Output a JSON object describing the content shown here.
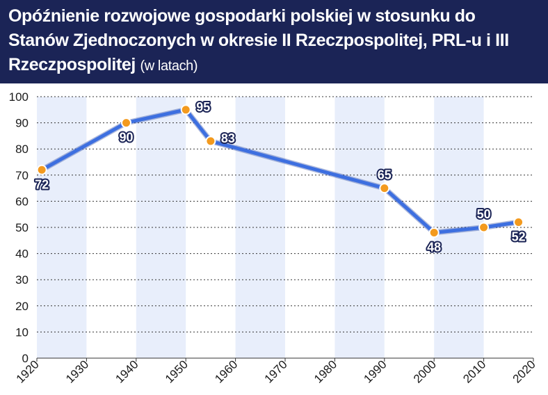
{
  "header": {
    "title": "Opóźnienie rozwojowe gospodarki polskiej w stosunku do Stanów Zjednoczonych w okresie II Rzeczpospolitej, PRL-u i III Rzeczpospolitej",
    "subtitle": "(w latach)"
  },
  "colors": {
    "header_bg": "#1b2456",
    "line": "#3d6fe0",
    "marker": "#f39a1e",
    "band": "#e8eefb",
    "label_outline": "#1b2456"
  },
  "chart_data": {
    "type": "line",
    "title": "Opóźnienie rozwojowe gospodarki polskiej w stosunku do Stanów Zjednoczonych w okresie II Rzeczpospolitej, PRL-u i III Rzeczpospolitej",
    "subtitle": "(w latach)",
    "xlabel": "",
    "ylabel": "",
    "xlim": [
      1920,
      2020
    ],
    "ylim": [
      0,
      100
    ],
    "x_ticks": [
      1920,
      1930,
      1940,
      1950,
      1960,
      1970,
      1980,
      1990,
      2000,
      2010,
      2020
    ],
    "y_ticks": [
      0,
      10,
      20,
      30,
      40,
      50,
      60,
      70,
      80,
      90,
      100
    ],
    "grid": "horizontal dotted",
    "series": [
      {
        "x": [
          1921,
          1938,
          1950,
          1955,
          1990,
          2000,
          2010,
          2017
        ],
        "values": [
          72,
          90,
          95,
          83,
          65,
          48,
          50,
          52
        ],
        "labels": [
          "72",
          "90",
          "95",
          "83",
          "65",
          "48",
          "50",
          "52"
        ],
        "label_pos": [
          "below",
          "below",
          "right",
          "right",
          "above",
          "below",
          "above",
          "below"
        ]
      }
    ]
  }
}
